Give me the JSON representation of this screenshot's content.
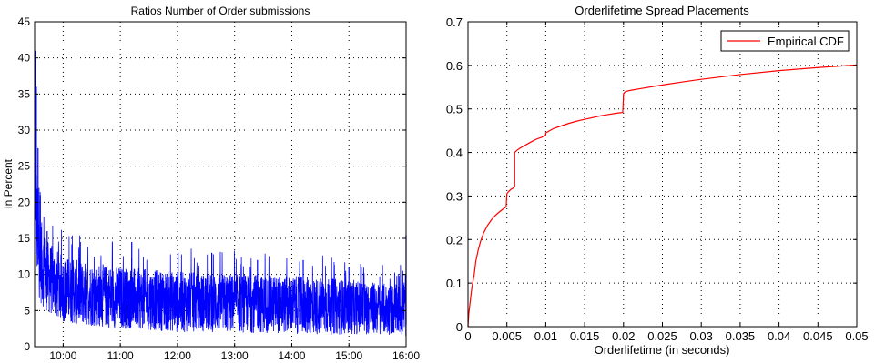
{
  "chart_data": [
    {
      "type": "line",
      "title": "Ratios Number of Order submissions",
      "xlabel": "",
      "ylabel": "in Percent",
      "x_tick_labels": [
        "10:00",
        "11:00",
        "12:00",
        "13:00",
        "14:00",
        "15:00",
        "16:00"
      ],
      "x_ticks_hours": [
        10,
        11,
        12,
        13,
        14,
        15,
        16
      ],
      "xlim_hours": [
        9.5,
        16.0
      ],
      "ylim": [
        0,
        45
      ],
      "y_ticks": [
        0,
        5,
        10,
        15,
        20,
        25,
        30,
        35,
        40,
        45
      ],
      "grid": true,
      "legend": "none",
      "color": "#0000ff",
      "series": [
        {
          "x_hours": [
            9.5,
            9.52,
            9.55,
            9.6,
            9.65,
            9.7,
            9.75,
            9.83,
            9.92,
            10.0,
            10.25,
            10.5,
            10.75,
            11.0,
            11.5,
            12.0,
            12.5,
            13.0,
            13.5,
            14.0,
            14.5,
            15.0,
            15.5,
            15.9,
            16.0
          ],
          "trend": [
            26,
            20,
            15,
            12,
            11,
            10,
            9.5,
            9,
            8.5,
            8,
            7.5,
            7.2,
            7,
            6.8,
            6.5,
            6.2,
            6.1,
            6,
            5.9,
            5.8,
            5.6,
            5.5,
            5.3,
            5,
            6
          ],
          "spread": [
            10,
            8,
            7,
            6,
            5.5,
            5,
            5,
            4.8,
            4.8,
            4.6,
            4.5,
            4.4,
            4.4,
            4.3,
            4.2,
            4.2,
            4.1,
            4.1,
            4.0,
            4.0,
            4.0,
            3.8,
            3.6,
            3.5,
            5
          ],
          "peaks": [
            [
              9.51,
              41
            ],
            [
              9.53,
              36
            ],
            [
              9.56,
              27.5
            ],
            [
              9.6,
              21
            ],
            [
              9.72,
              16
            ],
            [
              10.3,
              14.5
            ],
            [
              11.2,
              14.5
            ],
            [
              12.6,
              13
            ],
            [
              13.4,
              12
            ],
            [
              14.2,
              12
            ],
            [
              15.0,
              11
            ],
            [
              16.0,
              15.5
            ]
          ]
        }
      ]
    },
    {
      "type": "line",
      "title": "Orderlifetime Spread Placements",
      "xlabel": "Orderlifetime (in seconds)",
      "ylabel": "",
      "xlim": [
        0,
        0.05
      ],
      "ylim": [
        0,
        0.7
      ],
      "x_ticks": [
        0,
        0.005,
        0.01,
        0.015,
        0.02,
        0.025,
        0.03,
        0.035,
        0.04,
        0.045,
        0.05
      ],
      "x_tick_labels": [
        "0",
        "0.005",
        "0.01",
        "0.015",
        "0.02",
        "0.025",
        "0.03",
        "0.035",
        "0.04",
        "0.045",
        "0.05"
      ],
      "y_ticks": [
        0,
        0.1,
        0.2,
        0.3,
        0.4,
        0.5,
        0.6,
        0.7
      ],
      "y_tick_labels": [
        "0",
        "0.1",
        "0.2",
        "0.3",
        "0.4",
        "0.5",
        "0.6",
        "0.7"
      ],
      "grid": true,
      "legend": "top-right",
      "color": "#ff0000",
      "series": [
        {
          "name": "Empirical CDF",
          "x": [
            0,
            0.0001,
            0.0003,
            0.0005,
            0.0008,
            0.001,
            0.0013,
            0.0016,
            0.002,
            0.0025,
            0.003,
            0.0035,
            0.004,
            0.0045,
            0.0049,
            0.005,
            0.0052,
            0.0055,
            0.0058,
            0.006,
            0.006,
            0.0063,
            0.0067,
            0.007,
            0.0075,
            0.008,
            0.0085,
            0.009,
            0.0095,
            0.01,
            0.01,
            0.0105,
            0.011,
            0.012,
            0.013,
            0.014,
            0.015,
            0.016,
            0.017,
            0.018,
            0.019,
            0.0199,
            0.02,
            0.0202,
            0.0205,
            0.021,
            0.022,
            0.025,
            0.028,
            0.03,
            0.035,
            0.04,
            0.045,
            0.05
          ],
          "y": [
            0,
            0.03,
            0.06,
            0.09,
            0.12,
            0.15,
            0.175,
            0.195,
            0.215,
            0.232,
            0.245,
            0.255,
            0.263,
            0.27,
            0.275,
            0.305,
            0.31,
            0.315,
            0.318,
            0.322,
            0.4,
            0.405,
            0.41,
            0.413,
            0.418,
            0.423,
            0.428,
            0.432,
            0.435,
            0.44,
            0.445,
            0.45,
            0.455,
            0.461,
            0.467,
            0.472,
            0.476,
            0.48,
            0.484,
            0.487,
            0.49,
            0.492,
            0.535,
            0.539,
            0.541,
            0.543,
            0.546,
            0.555,
            0.563,
            0.568,
            0.579,
            0.588,
            0.595,
            0.601
          ]
        }
      ]
    }
  ]
}
